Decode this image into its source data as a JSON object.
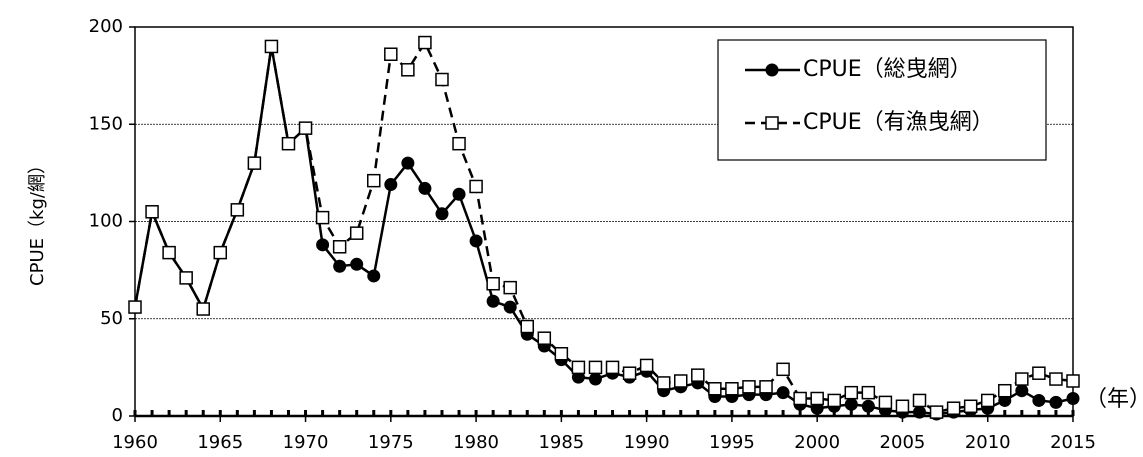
{
  "chart_data": {
    "type": "line",
    "y_label": "CPUE（kg/網）",
    "x_annotation": "（年）",
    "x": [
      1960,
      1961,
      1962,
      1963,
      1964,
      1965,
      1966,
      1967,
      1968,
      1969,
      1970,
      1971,
      1972,
      1973,
      1974,
      1975,
      1976,
      1977,
      1978,
      1979,
      1980,
      1981,
      1982,
      1983,
      1984,
      1985,
      1986,
      1987,
      1988,
      1989,
      1990,
      1991,
      1992,
      1993,
      1994,
      1995,
      1996,
      1997,
      1998,
      1999,
      2000,
      2001,
      2002,
      2003,
      2004,
      2005,
      2006,
      2007,
      2008,
      2009,
      2010,
      2011,
      2012,
      2013,
      2014,
      2015
    ],
    "series": [
      {
        "name": "CPUE（総曳網）",
        "color": "#000000",
        "marker": "circle",
        "dashed": false,
        "values": [
          56,
          105,
          84,
          71,
          55,
          84,
          106,
          130,
          190,
          140,
          148,
          88,
          77,
          78,
          72,
          119,
          130,
          117,
          104,
          114,
          90,
          59,
          56,
          42,
          36,
          29,
          20,
          19,
          22,
          20,
          23,
          13,
          15,
          17,
          10,
          10,
          11,
          11,
          12,
          6,
          4,
          5,
          6,
          5,
          3,
          2,
          2,
          1,
          2,
          3,
          4,
          8,
          13,
          8,
          7,
          9
        ]
      },
      {
        "name": "CPUE（有漁曳網）",
        "color": "#000000",
        "marker": "square",
        "dashed": true,
        "values": [
          56,
          105,
          84,
          71,
          55,
          84,
          106,
          130,
          190,
          140,
          148,
          102,
          87,
          94,
          121,
          186,
          178,
          192,
          173,
          140,
          118,
          68,
          66,
          46,
          40,
          32,
          25,
          25,
          25,
          22,
          26,
          17,
          18,
          21,
          14,
          14,
          15,
          15,
          24,
          9,
          9,
          8,
          12,
          12,
          7,
          5,
          8,
          2,
          4,
          5,
          8,
          13,
          19,
          22,
          19,
          18
        ]
      }
    ],
    "xlim": [
      1960,
      2015
    ],
    "xticks": [
      1960,
      1965,
      1970,
      1975,
      1980,
      1985,
      1990,
      1995,
      2000,
      2005,
      2010,
      2015
    ],
    "ylim": [
      0,
      200
    ],
    "yticks": [
      0,
      50,
      100,
      150,
      200
    ],
    "grid": true,
    "legend": "upper right"
  }
}
